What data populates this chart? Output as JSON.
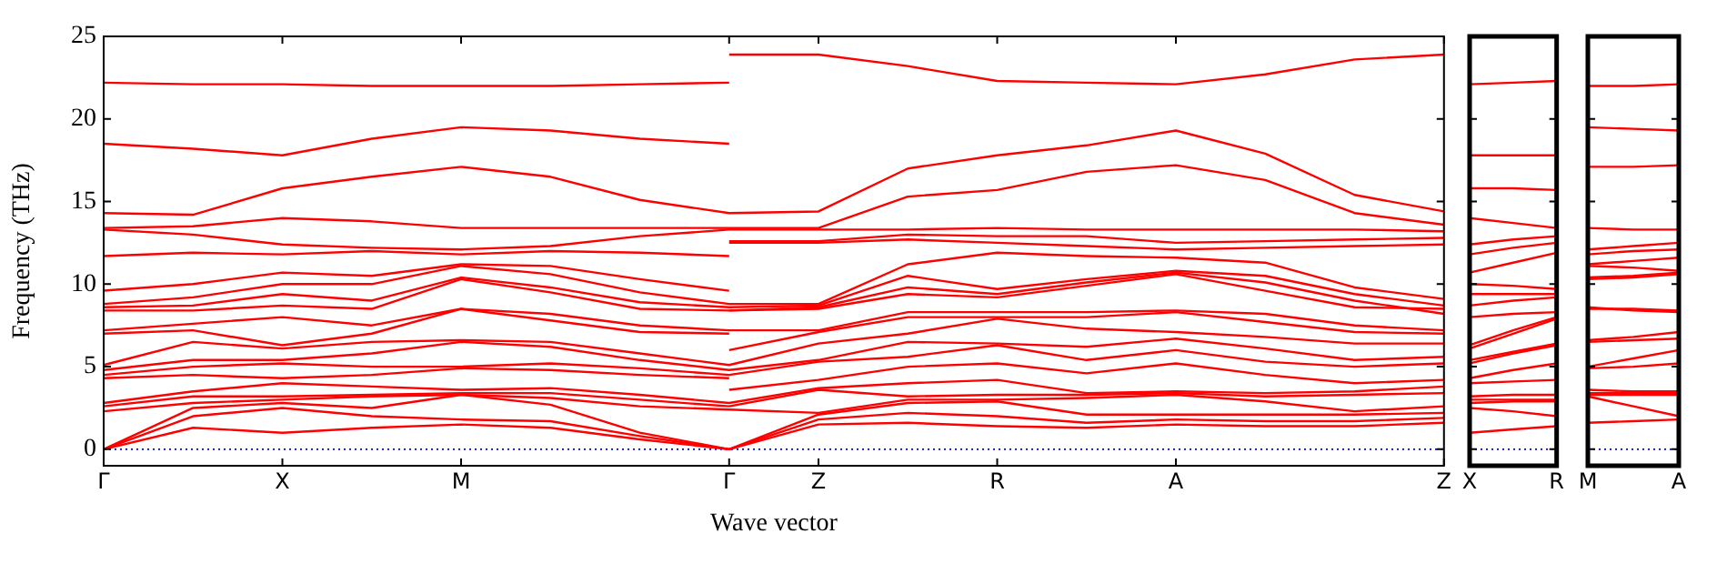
{
  "chart_data": [
    {
      "type": "line",
      "xlabel": "Wave vector",
      "ylabel": "Frequency (THz)",
      "categories": [
        "Γ",
        null,
        "X",
        null,
        "M",
        null,
        null,
        "Γ",
        "Z",
        null,
        "R",
        null,
        "A",
        null,
        null,
        "Z"
      ],
      "ylim": [
        -1,
        25
      ],
      "yticks": [
        0,
        5,
        10,
        15,
        20,
        25
      ],
      "grid": false,
      "legend": false,
      "marker": "none",
      "line_style": "solid",
      "ref_lines": [
        {
          "axis": "y",
          "value": 0,
          "color": "#0000ff",
          "line_style": "dotted"
        }
      ],
      "series": [
        {
          "color": "#ff0000",
          "values": [
            22.2,
            22.1,
            22.1,
            22.0,
            22.0,
            22.0,
            22.1,
            22.2,
            null,
            null,
            null,
            null,
            null,
            null,
            null,
            null
          ]
        },
        {
          "color": "#ff0000",
          "values": [
            18.5,
            18.2,
            17.8,
            18.8,
            19.5,
            19.3,
            18.8,
            18.5,
            null,
            null,
            null,
            null,
            null,
            null,
            null,
            null
          ]
        },
        {
          "color": "#ff0000",
          "values": [
            14.3,
            14.2,
            15.8,
            16.5,
            17.1,
            16.5,
            15.1,
            14.3,
            14.4,
            17.0,
            17.8,
            18.4,
            19.3,
            17.9,
            15.4,
            14.4
          ]
        },
        {
          "color": "#ff0000",
          "values": [
            13.4,
            13.5,
            14.0,
            13.8,
            13.4,
            13.4,
            13.4,
            13.4,
            13.4,
            15.3,
            15.7,
            16.8,
            17.2,
            16.3,
            14.3,
            13.6
          ]
        },
        {
          "color": "#ff0000",
          "values": [
            13.3,
            13.0,
            12.4,
            12.2,
            12.1,
            12.3,
            12.9,
            13.3,
            13.3,
            13.3,
            13.4,
            13.3,
            13.3,
            13.3,
            13.3,
            13.2
          ]
        },
        {
          "color": "#ff0000",
          "values": [
            11.7,
            11.9,
            11.8,
            12.0,
            11.8,
            12.0,
            11.9,
            11.7,
            null,
            null,
            null,
            null,
            null,
            null,
            null,
            null
          ]
        },
        {
          "color": "#ff0000",
          "values": [
            9.6,
            10.0,
            10.7,
            10.5,
            11.2,
            11.1,
            10.3,
            9.6,
            null,
            null,
            null,
            null,
            null,
            null,
            null,
            null
          ]
        },
        {
          "color": "#ff0000",
          "values": [
            8.8,
            9.2,
            10.0,
            10.0,
            11.1,
            10.6,
            9.5,
            8.8,
            8.8,
            11.2,
            11.9,
            11.7,
            11.6,
            11.3,
            9.8,
            9.1
          ]
        },
        {
          "color": "#ff0000",
          "values": [
            8.6,
            8.7,
            9.4,
            9.0,
            10.4,
            9.8,
            8.9,
            8.6,
            8.7,
            10.5,
            9.7,
            10.3,
            10.8,
            10.5,
            9.4,
            8.7
          ]
        },
        {
          "color": "#ff0000",
          "values": [
            8.4,
            8.4,
            8.7,
            8.5,
            10.3,
            9.5,
            8.5,
            8.4,
            8.6,
            9.8,
            9.4,
            10.1,
            10.7,
            10.1,
            9.0,
            8.2
          ]
        },
        {
          "color": "#ff0000",
          "values": [
            7.2,
            7.6,
            8.0,
            7.5,
            8.5,
            8.2,
            7.5,
            7.2,
            7.2,
            8.3,
            8.3,
            8.3,
            8.4,
            8.2,
            7.5,
            7.2
          ]
        },
        {
          "color": "#ff0000",
          "values": [
            7.0,
            7.2,
            6.3,
            7.0,
            8.5,
            7.8,
            7.1,
            7.0,
            null,
            null,
            null,
            null,
            null,
            null,
            null,
            null
          ]
        },
        {
          "color": "#ff0000",
          "values": [
            5.1,
            6.5,
            6.1,
            6.5,
            6.6,
            6.5,
            5.8,
            5.1,
            6.4,
            7.0,
            7.9,
            7.3,
            7.1,
            6.8,
            6.4,
            6.4
          ]
        },
        {
          "color": "#ff0000",
          "values": [
            4.8,
            5.4,
            5.4,
            5.8,
            6.5,
            6.2,
            5.4,
            4.8,
            5.4,
            6.5,
            6.4,
            6.2,
            6.7,
            6.1,
            5.4,
            5.6
          ]
        },
        {
          "color": "#ff0000",
          "values": [
            4.5,
            5.0,
            5.2,
            5.0,
            5.0,
            5.2,
            4.9,
            4.5,
            5.3,
            5.6,
            6.3,
            5.4,
            6.0,
            5.3,
            5.0,
            5.2
          ]
        },
        {
          "color": "#ff0000",
          "values": [
            4.3,
            4.5,
            4.3,
            4.5,
            4.9,
            4.8,
            4.5,
            4.3,
            null,
            null,
            null,
            null,
            null,
            null,
            null,
            null
          ]
        },
        {
          "color": "#ff0000",
          "values": [
            2.8,
            3.5,
            4.0,
            3.8,
            3.6,
            3.7,
            3.3,
            2.8,
            3.7,
            4.0,
            4.2,
            3.4,
            3.5,
            3.4,
            3.5,
            3.8
          ]
        },
        {
          "color": "#ff0000",
          "values": [
            2.6,
            3.2,
            3.2,
            3.3,
            3.4,
            3.4,
            3.0,
            2.6,
            3.6,
            3.2,
            3.3,
            3.3,
            3.4,
            3.2,
            3.3,
            3.4
          ]
        },
        {
          "color": "#ff0000",
          "values": [
            2.3,
            2.8,
            3.0,
            3.2,
            3.3,
            3.1,
            2.6,
            2.4,
            2.2,
            3.0,
            3.0,
            3.1,
            3.3,
            2.9,
            2.3,
            2.6
          ]
        },
        {
          "color": "#ff0000",
          "values": [
            0,
            2.5,
            2.8,
            2.5,
            3.3,
            2.7,
            1.0,
            0,
            2.1,
            2.8,
            2.9,
            2.1,
            2.1,
            2.1,
            2.1,
            2.2
          ]
        },
        {
          "color": "#ff0000",
          "values": [
            0,
            2.0,
            2.5,
            2.0,
            1.8,
            1.7,
            0.8,
            0,
            1.8,
            2.2,
            2.0,
            1.6,
            1.8,
            1.7,
            1.7,
            1.9
          ]
        },
        {
          "color": "#ff0000",
          "values": [
            0,
            1.3,
            1.0,
            1.3,
            1.5,
            1.3,
            0.6,
            0,
            1.5,
            1.6,
            1.4,
            1.3,
            1.5,
            1.4,
            1.4,
            1.6
          ]
        },
        {
          "color": "#ff0000",
          "values": [
            null,
            null,
            null,
            null,
            null,
            null,
            null,
            23.9,
            23.9,
            23.2,
            22.3,
            22.2,
            22.1,
            22.7,
            23.6,
            23.9
          ]
        },
        {
          "color": "#ff0000",
          "values": [
            null,
            null,
            null,
            null,
            null,
            null,
            null,
            12.6,
            12.6,
            13.0,
            12.9,
            12.9,
            12.5,
            12.6,
            12.7,
            12.8
          ]
        },
        {
          "color": "#ff0000",
          "values": [
            null,
            null,
            null,
            null,
            null,
            null,
            null,
            12.5,
            12.5,
            12.7,
            12.5,
            12.3,
            12.1,
            12.2,
            12.3,
            12.4
          ]
        },
        {
          "color": "#ff0000",
          "values": [
            null,
            null,
            null,
            null,
            null,
            null,
            null,
            8.4,
            8.5,
            9.4,
            9.2,
            9.9,
            10.6,
            9.6,
            8.6,
            8.5
          ]
        },
        {
          "color": "#ff0000",
          "values": [
            null,
            null,
            null,
            null,
            null,
            null,
            null,
            6.0,
            7.1,
            8.0,
            8.0,
            8.0,
            8.3,
            7.7,
            7.1,
            7.0
          ]
        },
        {
          "color": "#ff0000",
          "values": [
            null,
            null,
            null,
            null,
            null,
            null,
            null,
            3.6,
            4.2,
            5.0,
            5.2,
            4.6,
            5.2,
            4.5,
            4.0,
            4.2
          ]
        }
      ]
    },
    {
      "type": "line",
      "categories": [
        "X",
        null,
        "R"
      ],
      "ylim": [
        -1,
        25
      ],
      "yticks": [
        0,
        5,
        10,
        15,
        20,
        25
      ],
      "tick_labels": "x",
      "grid": false,
      "legend": false,
      "marker": "none",
      "line_style": "solid",
      "ref_lines": [
        {
          "axis": "y",
          "value": 0,
          "color": "#0000ff",
          "line_style": "dotted"
        }
      ],
      "series": [
        {
          "color": "#ff0000",
          "values": [
            22.1,
            22.2,
            22.3
          ]
        },
        {
          "color": "#ff0000",
          "values": [
            17.8,
            17.8,
            17.8
          ]
        },
        {
          "color": "#ff0000",
          "values": [
            15.8,
            15.8,
            15.7
          ]
        },
        {
          "color": "#ff0000",
          "values": [
            14.0,
            13.7,
            13.4
          ]
        },
        {
          "color": "#ff0000",
          "values": [
            12.4,
            12.7,
            12.9
          ]
        },
        {
          "color": "#ff0000",
          "values": [
            11.8,
            12.2,
            12.5
          ]
        },
        {
          "color": "#ff0000",
          "values": [
            10.7,
            11.3,
            11.9
          ]
        },
        {
          "color": "#ff0000",
          "values": [
            10.0,
            9.9,
            9.7
          ]
        },
        {
          "color": "#ff0000",
          "values": [
            9.4,
            9.4,
            9.4
          ]
        },
        {
          "color": "#ff0000",
          "values": [
            8.7,
            9.0,
            9.2
          ]
        },
        {
          "color": "#ff0000",
          "values": [
            8.0,
            8.2,
            8.3
          ]
        },
        {
          "color": "#ff0000",
          "values": [
            6.3,
            7.2,
            8.0
          ]
        },
        {
          "color": "#ff0000",
          "values": [
            6.1,
            7.0,
            7.9
          ]
        },
        {
          "color": "#ff0000",
          "values": [
            5.4,
            5.9,
            6.4
          ]
        },
        {
          "color": "#ff0000",
          "values": [
            5.2,
            5.8,
            6.3
          ]
        },
        {
          "color": "#ff0000",
          "values": [
            4.3,
            4.8,
            5.2
          ]
        },
        {
          "color": "#ff0000",
          "values": [
            4.0,
            4.1,
            4.2
          ]
        },
        {
          "color": "#ff0000",
          "values": [
            3.2,
            3.3,
            3.3
          ]
        },
        {
          "color": "#ff0000",
          "values": [
            3.0,
            3.0,
            3.0
          ]
        },
        {
          "color": "#ff0000",
          "values": [
            2.8,
            2.9,
            2.9
          ]
        },
        {
          "color": "#ff0000",
          "values": [
            2.5,
            2.3,
            2.0
          ]
        },
        {
          "color": "#ff0000",
          "values": [
            1.0,
            1.2,
            1.4
          ]
        }
      ]
    },
    {
      "type": "line",
      "categories": [
        "M",
        null,
        "A"
      ],
      "ylim": [
        -1,
        25
      ],
      "yticks": [
        0,
        5,
        10,
        15,
        20,
        25
      ],
      "tick_labels": "x",
      "grid": false,
      "legend": false,
      "marker": "none",
      "line_style": "solid",
      "ref_lines": [
        {
          "axis": "y",
          "value": 0,
          "color": "#0000ff",
          "line_style": "dotted"
        }
      ],
      "series": [
        {
          "color": "#ff0000",
          "values": [
            22.0,
            22.0,
            22.1
          ]
        },
        {
          "color": "#ff0000",
          "values": [
            19.5,
            19.4,
            19.3
          ]
        },
        {
          "color": "#ff0000",
          "values": [
            17.1,
            17.1,
            17.2
          ]
        },
        {
          "color": "#ff0000",
          "values": [
            13.4,
            13.3,
            13.3
          ]
        },
        {
          "color": "#ff0000",
          "values": [
            12.1,
            12.3,
            12.5
          ]
        },
        {
          "color": "#ff0000",
          "values": [
            11.8,
            12.0,
            12.1
          ]
        },
        {
          "color": "#ff0000",
          "values": [
            11.2,
            11.4,
            11.6
          ]
        },
        {
          "color": "#ff0000",
          "values": [
            11.1,
            11.0,
            10.8
          ]
        },
        {
          "color": "#ff0000",
          "values": [
            10.4,
            10.5,
            10.7
          ]
        },
        {
          "color": "#ff0000",
          "values": [
            10.3,
            10.4,
            10.6
          ]
        },
        {
          "color": "#ff0000",
          "values": [
            8.5,
            8.5,
            8.4
          ]
        },
        {
          "color": "#ff0000",
          "values": [
            8.6,
            8.4,
            8.3
          ]
        },
        {
          "color": "#ff0000",
          "values": [
            6.6,
            6.8,
            7.1
          ]
        },
        {
          "color": "#ff0000",
          "values": [
            6.5,
            6.6,
            6.7
          ]
        },
        {
          "color": "#ff0000",
          "values": [
            5.0,
            5.5,
            6.0
          ]
        },
        {
          "color": "#ff0000",
          "values": [
            4.9,
            5.0,
            5.2
          ]
        },
        {
          "color": "#ff0000",
          "values": [
            3.6,
            3.5,
            3.5
          ]
        },
        {
          "color": "#ff0000",
          "values": [
            3.4,
            3.4,
            3.4
          ]
        },
        {
          "color": "#ff0000",
          "values": [
            3.3,
            3.3,
            3.3
          ]
        },
        {
          "color": "#ff0000",
          "values": [
            3.2,
            2.6,
            2.0
          ]
        },
        {
          "color": "#ff0000",
          "values": [
            1.6,
            1.7,
            1.8
          ]
        }
      ]
    }
  ]
}
